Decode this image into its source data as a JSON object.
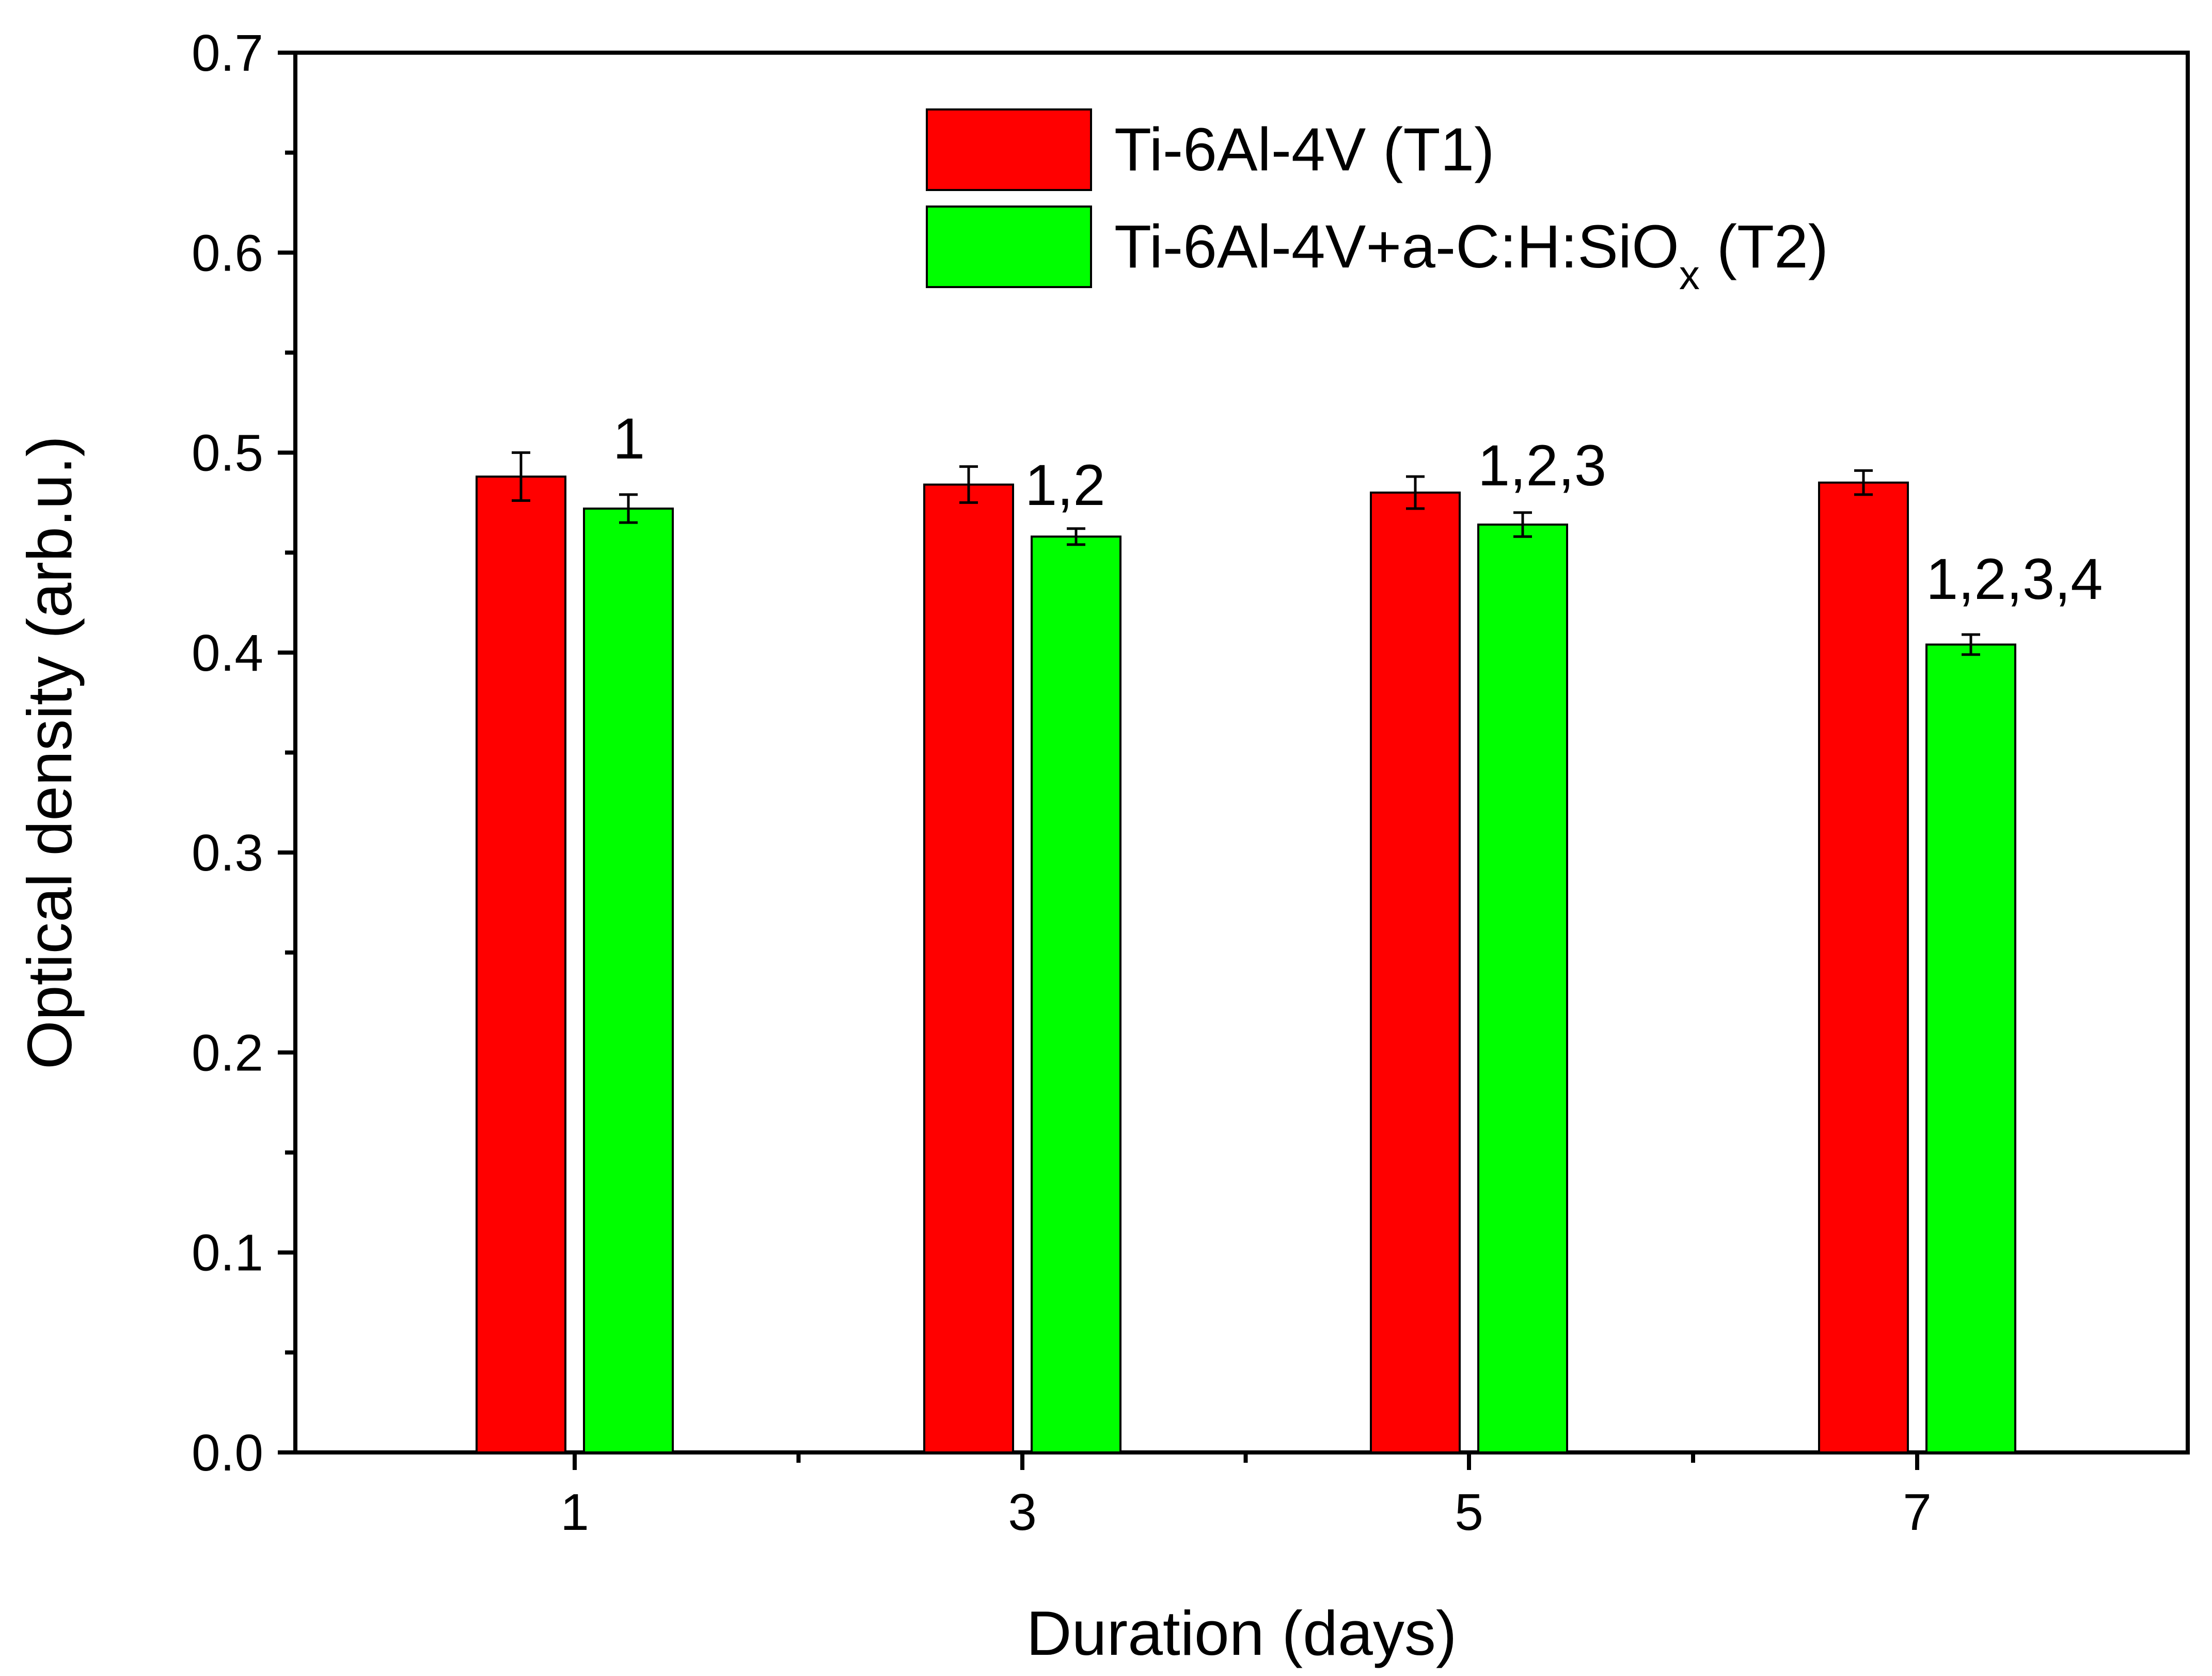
{
  "chart_data": {
    "type": "bar",
    "title": "",
    "xlabel": "Duration (days)",
    "ylabel": "Optical density (arb.u.)",
    "ylim": [
      0,
      0.7
    ],
    "yticks": [
      "0.0",
      "0.1",
      "0.2",
      "0.3",
      "0.4",
      "0.5",
      "0.6",
      "0.7"
    ],
    "categories": [
      "1",
      "3",
      "5",
      "7"
    ],
    "legend_position": "top-right",
    "grid": false,
    "series": [
      {
        "name": "Ti-6Al-4V (T1)",
        "name_main": "Ti-6Al-4V (T1)",
        "color": "#ff0000",
        "values": [
          0.488,
          0.484,
          0.48,
          0.485
        ],
        "errors": [
          0.012,
          0.009,
          0.008,
          0.006
        ]
      },
      {
        "name": "Ti-6Al-4V+a-C:H:SiOx (T2)",
        "name_main": "Ti-6Al-4V+a-C:H:SiO",
        "name_sub": "x",
        "name_tail": " (T2)",
        "color": "#00ff00",
        "values": [
          0.472,
          0.458,
          0.464,
          0.404
        ],
        "errors": [
          0.007,
          0.004,
          0.006,
          0.005
        ]
      }
    ],
    "annotations": [
      "1",
      "1,2",
      "1,2,3",
      "1,2,3,4"
    ]
  }
}
